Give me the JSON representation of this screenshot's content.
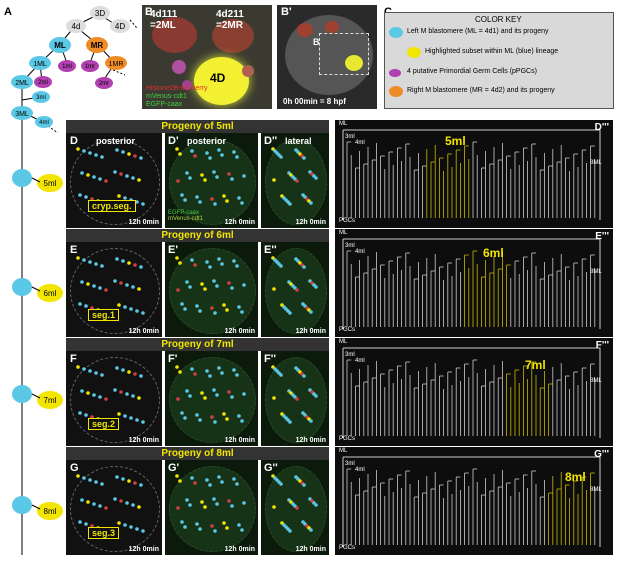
{
  "panel_a": {
    "label": "A",
    "nodes": [
      "3D",
      "4d",
      "4D",
      "ML",
      "MR",
      "1ML",
      "1ml",
      "1mr",
      "1MR",
      "2ML",
      "2ml",
      "2mr",
      "3ml",
      "3ML",
      "4ml",
      "5ml",
      "6ml",
      "7ml",
      "8ml"
    ]
  },
  "panel_b": {
    "label": "B",
    "left_label": "4d111\n=2ML",
    "right_label": "4d211\n=2MR",
    "center_label": "4D",
    "legend1": "Histone2B-mCherry",
    "legend2": "mVenus-cdt1",
    "legend3": "EGFP-caax"
  },
  "panel_b2": {
    "label": "B'",
    "inset_label": "B",
    "time": "0h 00min = 8 hpf"
  },
  "panel_c": {
    "label": "C",
    "title": "COLOR KEY",
    "items": [
      {
        "color": "#5bc8e6",
        "text": "Left M blastomere (ML = 4d1) and its progeny"
      },
      {
        "color": "#f2e600",
        "text": "Highlighted subset within  ML (blue) lineage"
      },
      {
        "color": "#b040b0",
        "text": "4 putative Primordial Germ Cells (pPGCs)"
      },
      {
        "color": "#f08c28",
        "text": "Right M blastomere (MR = 4d2) and its progeny"
      }
    ]
  },
  "rows": [
    {
      "title": "Progeny of 5ml",
      "l1": "D",
      "l2": "D'",
      "l3": "D''",
      "l4": "D'''",
      "h1": "posterior",
      "h2": "posterior",
      "h3": "lateral",
      "box": "cryp.seg.",
      "time": "12h 0min",
      "tree_label": "5ml",
      "key": "5ml",
      "legend_a": "EGFP-caax",
      "legend_b": "mVenus-cdt1"
    },
    {
      "title": "Progeny of  6ml",
      "l1": "E",
      "l2": "E'",
      "l3": "E''",
      "l4": "E'''",
      "h1": "",
      "h2": "",
      "h3": "",
      "box": "seg.1",
      "time": "12h 0min",
      "tree_label": "6ml",
      "key": "6ml",
      "legend_a": "",
      "legend_b": ""
    },
    {
      "title": "Progeny of 7ml",
      "l1": "F",
      "l2": "F'",
      "l3": "F''",
      "l4": "F'''",
      "h1": "",
      "h2": "",
      "h3": "",
      "box": "seg.2",
      "time": "12h 0min",
      "tree_label": "7ml",
      "key": "7ml",
      "legend_a": "",
      "legend_b": ""
    },
    {
      "title": "Progeny of 8ml",
      "l1": "G",
      "l2": "G'",
      "l3": "G''",
      "l4": "G'''",
      "h1": "",
      "h2": "",
      "h3": "",
      "box": "seg.3",
      "time": "12h 0min",
      "tree_label": "8ml",
      "key": "8ml",
      "legend_a": "",
      "legend_b": ""
    }
  ],
  "tree_text": {
    "ml": "ML",
    "t3ml": "3ml",
    "t4ml": "4ml",
    "t5ml": "5ml",
    "t6ml": "6ml",
    "t7ml": "7ml",
    "t8ml": "8ml",
    "t8ML": "8ML",
    "pgcs": "PGCs"
  },
  "colors": {
    "cyan": "#5bc8e6",
    "yellow": "#f2e600",
    "orange": "#f08c28",
    "purple": "#b040b0",
    "grey": "#aaaaaa"
  }
}
